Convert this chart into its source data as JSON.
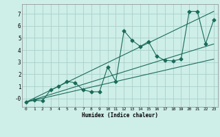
{
  "background_color": "#ceeee8",
  "grid_color": "#aacfca",
  "line_color": "#1a6b5a",
  "xlabel": "Humidex (Indice chaleur)",
  "xlim": [
    -0.5,
    23.5
  ],
  "ylim": [
    -0.7,
    7.8
  ],
  "xticks": [
    0,
    1,
    2,
    3,
    4,
    5,
    6,
    7,
    8,
    9,
    10,
    11,
    12,
    13,
    14,
    15,
    16,
    17,
    18,
    19,
    20,
    21,
    22,
    23
  ],
  "yticks": [
    0,
    1,
    2,
    3,
    4,
    5,
    6,
    7
  ],
  "ytick_labels": [
    "-0",
    "1",
    "2",
    "3",
    "4",
    "5",
    "6",
    "7"
  ],
  "series1_x": [
    0,
    1,
    2,
    3,
    4,
    5,
    6,
    7,
    8,
    9,
    10,
    11,
    12,
    13,
    14,
    15,
    16,
    17,
    18,
    19,
    20,
    21,
    22,
    23
  ],
  "series1_y": [
    -0.3,
    -0.15,
    -0.2,
    0.7,
    1.0,
    1.4,
    1.3,
    0.7,
    0.55,
    0.55,
    2.6,
    1.4,
    5.6,
    4.8,
    4.3,
    4.7,
    3.5,
    3.15,
    3.1,
    3.25,
    7.2,
    7.2,
    4.5,
    6.5
  ],
  "series2_x": [
    0,
    23
  ],
  "series2_y": [
    -0.3,
    7.2
  ],
  "series3_x": [
    0,
    23
  ],
  "series3_y": [
    -0.3,
    3.25
  ],
  "series4_x": [
    0,
    23
  ],
  "series4_y": [
    -0.3,
    4.5
  ]
}
